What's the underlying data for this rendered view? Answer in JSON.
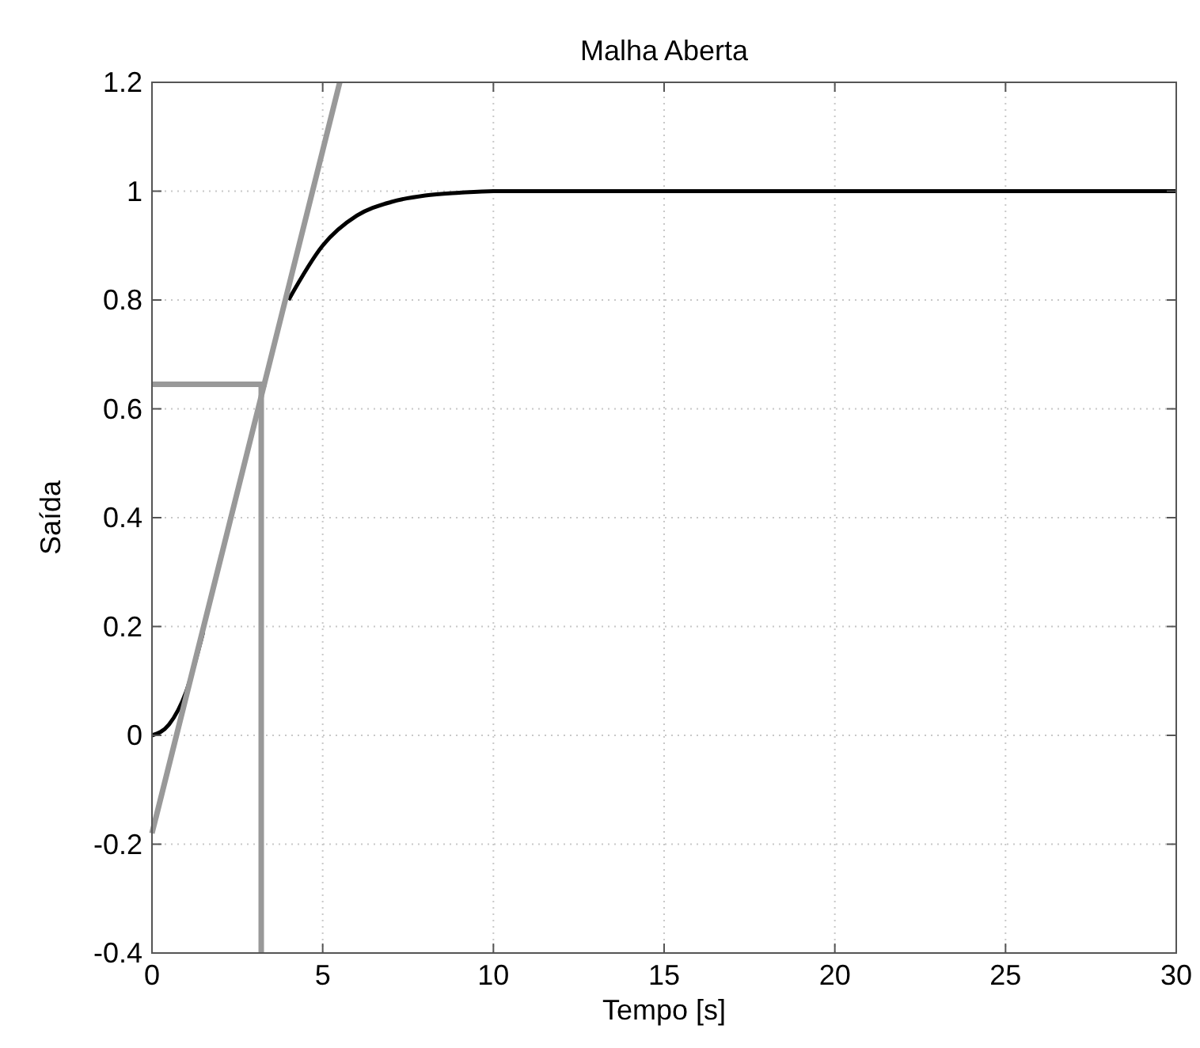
{
  "chart_data": {
    "type": "line",
    "title": "Malha Aberta",
    "xlabel": "Tempo [s]",
    "ylabel": "Saída",
    "xlim": [
      0,
      30
    ],
    "ylim": [
      -0.4,
      1.2
    ],
    "xticks": [
      0,
      5,
      10,
      15,
      20,
      25,
      30
    ],
    "yticks": [
      -0.4,
      -0.2,
      0,
      0.2,
      0.4,
      0.6,
      0.8,
      1,
      1.2
    ],
    "grid": true,
    "marker": "none",
    "line_style": "solid",
    "series": [
      {
        "color": "#000000",
        "x": [
          0,
          0.5,
          1,
          1.5,
          2,
          2.5,
          3,
          3.3,
          4,
          5,
          6,
          7,
          8,
          9,
          10,
          12,
          15,
          20,
          30
        ],
        "values": [
          0,
          0.02,
          0.08,
          0.19,
          null,
          null,
          null,
          null,
          0.8,
          0.9,
          0.955,
          0.98,
          0.992,
          0.997,
          1,
          1,
          1,
          1,
          1
        ]
      },
      {
        "color": "#999999",
        "x": [
          0,
          5.5
        ],
        "values": [
          -0.18,
          1.2
        ]
      },
      {
        "color": "#999999",
        "x": [
          0,
          3.35
        ],
        "values": [
          0.645,
          0.645
        ]
      },
      {
        "color": "#999999",
        "x": [
          3.2,
          3.2
        ],
        "values": [
          -0.4,
          0.645
        ]
      }
    ]
  }
}
